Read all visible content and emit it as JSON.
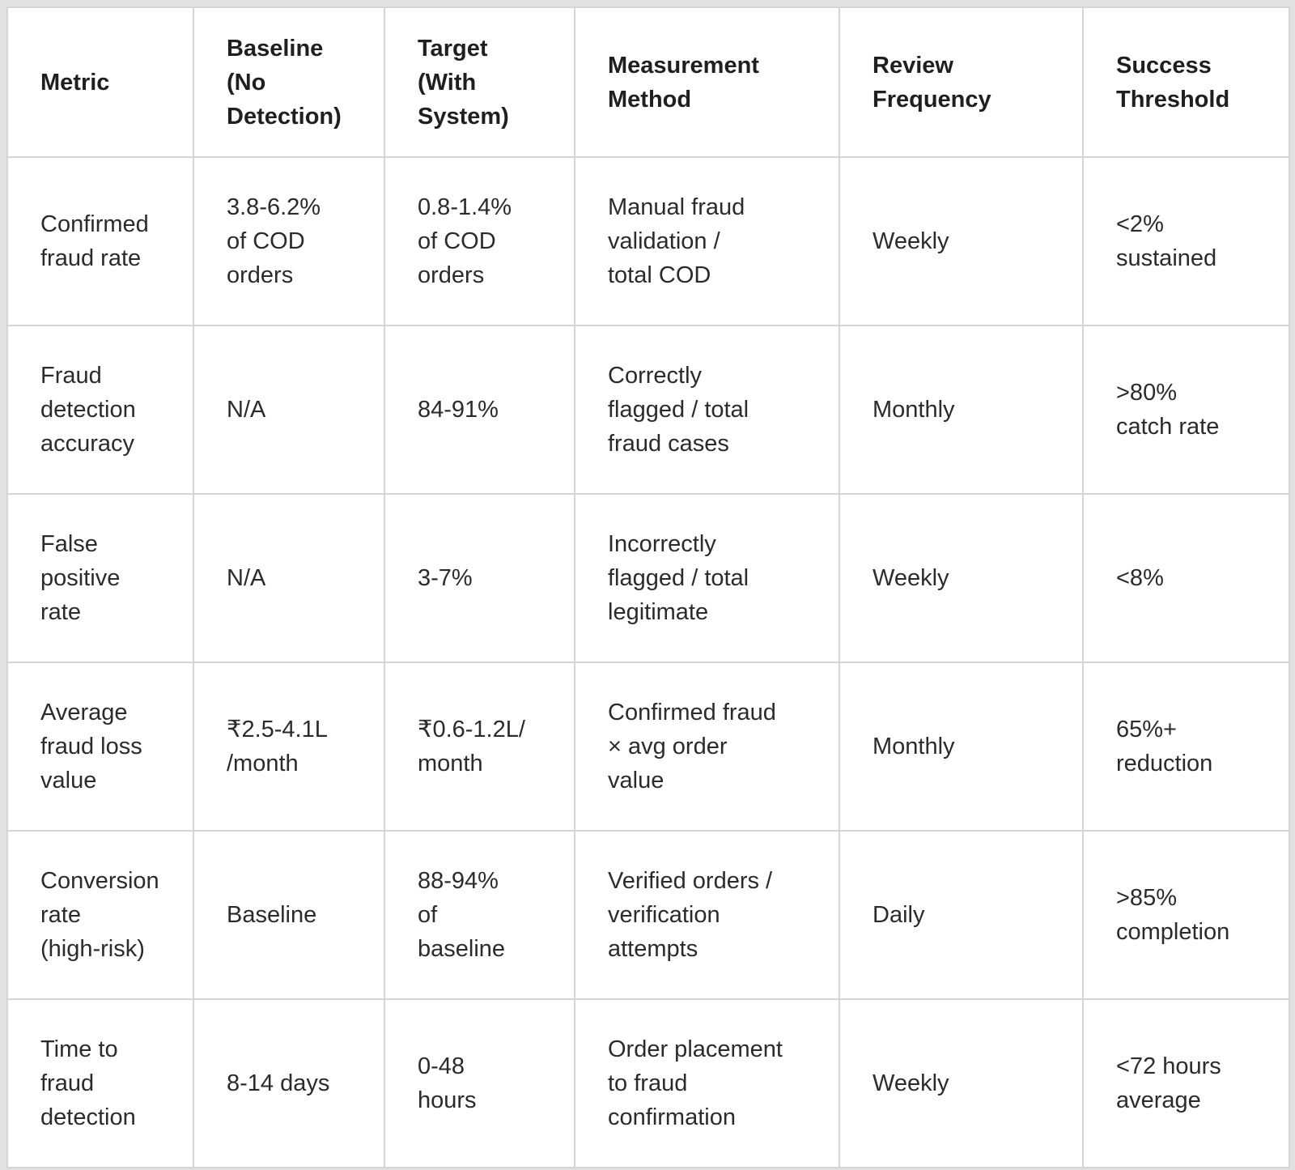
{
  "colors": {
    "page_background": "#e1e1e1",
    "cell_background": "#ffffff",
    "border": "#d5d5d5",
    "header_text": "#1f1f1f",
    "body_text": "#2b2b2b"
  },
  "table": {
    "headers": [
      "Metric",
      "Baseline\n(No\nDetection)",
      "Target\n(With\nSystem)",
      "Measurement\nMethod",
      "Review\nFrequency",
      "Success\nThreshold"
    ],
    "rows": [
      [
        "Confirmed\nfraud rate",
        "3.8-6.2%\nof COD\norders",
        "0.8-1.4%\nof COD\norders",
        "Manual fraud\nvalidation /\ntotal COD",
        "Weekly",
        "<2%\nsustained"
      ],
      [
        "Fraud\ndetection\naccuracy",
        "N/A",
        "84-91%",
        "Correctly\nflagged / total\nfraud cases",
        "Monthly",
        ">80%\ncatch rate"
      ],
      [
        "False\npositive\nrate",
        "N/A",
        "3-7%",
        "Incorrectly\nflagged / total\nlegitimate",
        "Weekly",
        "<8%"
      ],
      [
        "Average\nfraud loss\nvalue",
        "₹2.5-4.1L\n/month",
        "₹0.6-1.2L/\nmonth",
        "Confirmed fraud\n× avg order\nvalue",
        "Monthly",
        "65%+\nreduction"
      ],
      [
        "Conversion\nrate\n(high-risk)",
        "Baseline",
        "88-94%\nof\nbaseline",
        "Verified orders /\nverification\nattempts",
        "Daily",
        ">85%\ncompletion"
      ],
      [
        "Time to\nfraud\ndetection",
        "8-14 days",
        "0-48\nhours",
        "Order placement\nto fraud\nconfirmation",
        "Weekly",
        "<72 hours\naverage"
      ]
    ]
  }
}
